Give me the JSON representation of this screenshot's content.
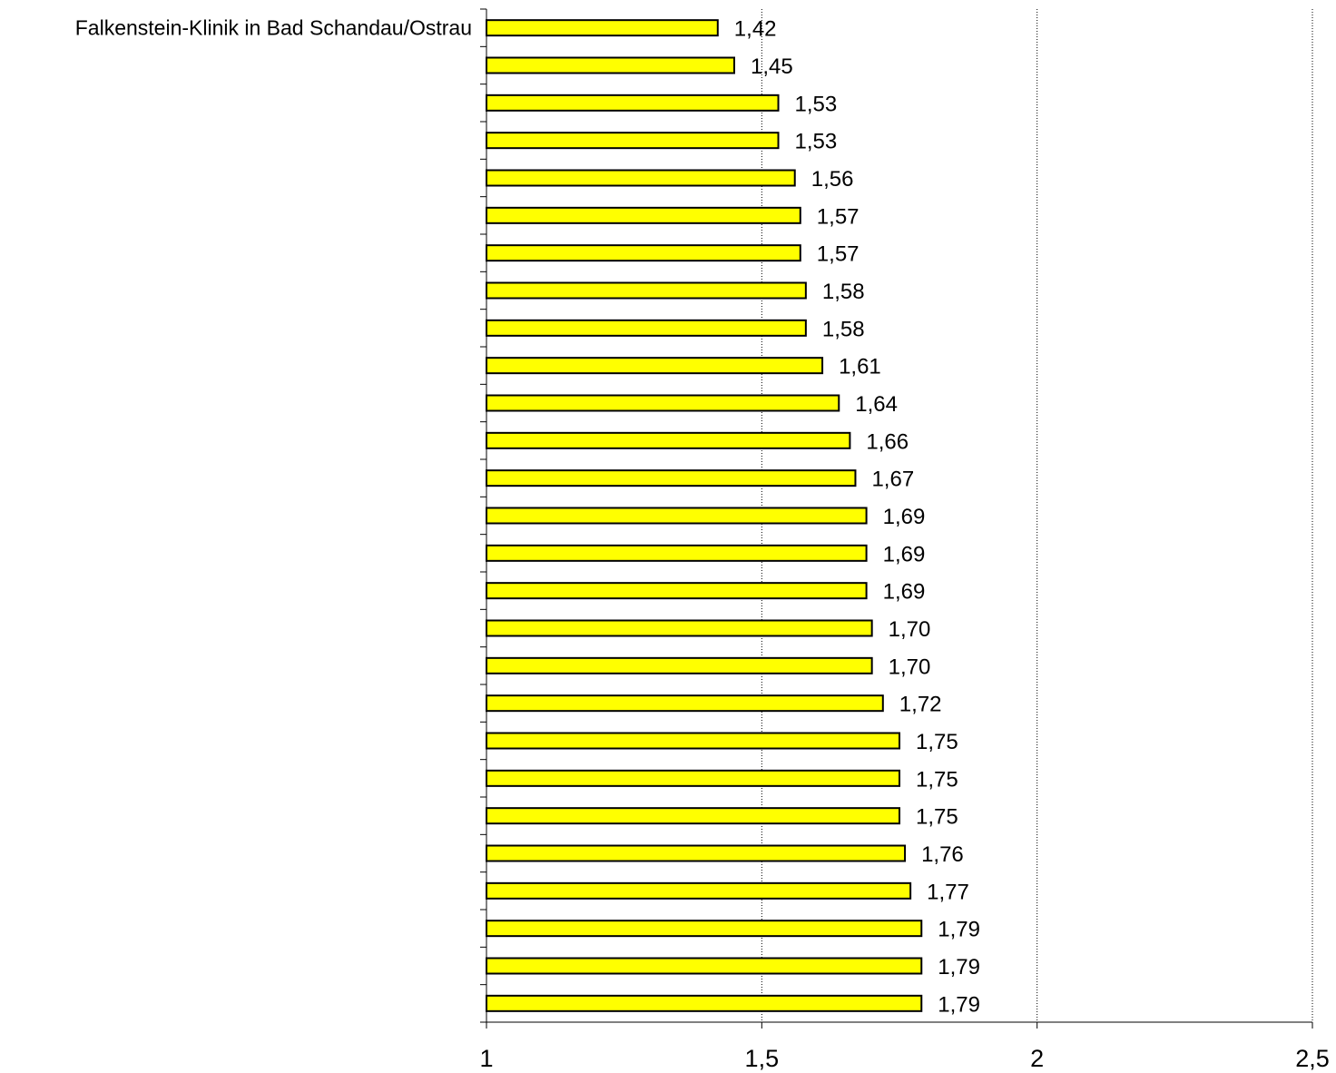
{
  "chart_data": {
    "type": "bar",
    "orientation": "horizontal",
    "categories": [
      "Falkenstein-Klinik in Bad Schandau/Ostrau",
      "",
      "",
      "",
      "",
      "",
      "",
      "",
      "",
      "",
      "",
      "",
      "",
      "",
      "",
      "",
      "",
      "",
      "",
      "",
      "",
      "",
      "",
      "",
      "",
      "",
      ""
    ],
    "values": [
      1.42,
      1.45,
      1.53,
      1.53,
      1.56,
      1.57,
      1.57,
      1.58,
      1.58,
      1.61,
      1.64,
      1.66,
      1.67,
      1.69,
      1.69,
      1.69,
      1.7,
      1.7,
      1.72,
      1.75,
      1.75,
      1.75,
      1.76,
      1.77,
      1.79,
      1.79,
      1.79
    ],
    "value_labels": [
      "1,42",
      "1,45",
      "1,53",
      "1,53",
      "1,56",
      "1,57",
      "1,57",
      "1,58",
      "1,58",
      "1,61",
      "1,64",
      "1,66",
      "1,67",
      "1,69",
      "1,69",
      "1,69",
      "1,70",
      "1,70",
      "1,72",
      "1,75",
      "1,75",
      "1,75",
      "1,76",
      "1,77",
      "1,79",
      "1,79",
      "1,79"
    ],
    "x_ticks": [
      1,
      1.5,
      2,
      2.5
    ],
    "x_tick_labels": [
      "1",
      "1,5",
      "2",
      "2,5"
    ],
    "xlim": [
      1,
      2.5
    ],
    "grid": "vertical dotted",
    "bar_color": "#ffff00",
    "bar_edge_color": "#000000",
    "title": "",
    "xlabel": "",
    "ylabel": ""
  }
}
